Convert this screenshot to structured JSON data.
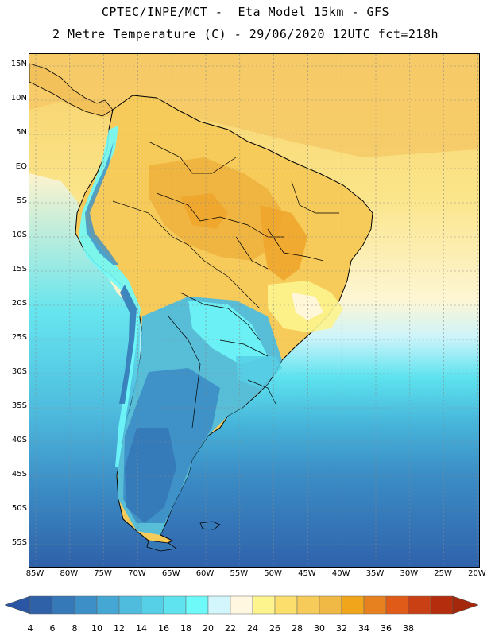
{
  "header": {
    "title": "CPTEC/INPE/MCT -  Eta Model 15km - GFS",
    "subtitle": "2 Metre Temperature (C) - 29/06/2020 12UTC fct=218h"
  },
  "map": {
    "lat_ticks": [
      "15N",
      "10N",
      "5N",
      "EQ",
      "5S",
      "10S",
      "15S",
      "20S",
      "25S",
      "30S",
      "35S",
      "40S",
      "45S",
      "50S",
      "55S"
    ],
    "lon_ticks": [
      "85W",
      "80W",
      "75W",
      "70W",
      "65W",
      "60W",
      "55W",
      "50W",
      "45W",
      "40W",
      "35W",
      "30W",
      "25W",
      "20W"
    ]
  },
  "colorbar": {
    "labels": [
      "4",
      "6",
      "8",
      "10",
      "12",
      "14",
      "16",
      "18",
      "20",
      "22",
      "24",
      "26",
      "28",
      "30",
      "32",
      "34",
      "36",
      "38"
    ],
    "colors": [
      "#2f61a8",
      "#3579b8",
      "#3d8fc7",
      "#45a7d3",
      "#4fbcde",
      "#56d0e7",
      "#5fe4ef",
      "#6ffafa",
      "#d2f6fb",
      "#fff7e0",
      "#fdf48e",
      "#fcde6d",
      "#f6cb5a",
      "#f0b845",
      "#f1a51a",
      "#e7801e",
      "#df5b17",
      "#c94014",
      "#b42e0e"
    ],
    "under_color": "#2b56a3",
    "over_color": "#a3280c"
  }
}
